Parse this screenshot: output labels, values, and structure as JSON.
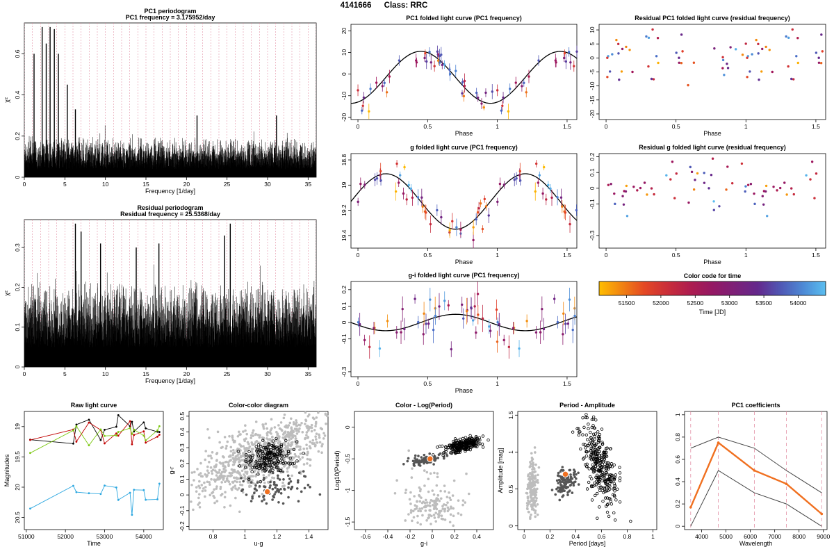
{
  "header": {
    "object_id": "4141666",
    "class_label": "Class: RRC"
  },
  "colors": {
    "grid": "#e38fa5",
    "grey": "#bdbdbd",
    "dark": "#555555",
    "orange": "#f07020"
  },
  "colorbar": {
    "title": "Color code for time",
    "xlabel": "Time [JD]",
    "ticks": [
      51500,
      52000,
      52500,
      53000,
      53500,
      54000
    ],
    "range": [
      51100,
      54400
    ]
  },
  "chart_data": [
    {
      "id": "pc1-periodogram",
      "type": "line",
      "title": "PC1 periodogram",
      "subtitle": "PC1 frequency = 3.175952/day",
      "xlabel": "Frequency [1/day]",
      "ylabel": "χ²",
      "xlim": [
        0,
        36
      ],
      "ylim": [
        0,
        0.75
      ],
      "xticks": [
        0,
        5,
        10,
        15,
        20,
        25,
        30,
        35
      ],
      "yticks": [
        0,
        0.2,
        0.4,
        0.6
      ],
      "peaks": [
        {
          "f": 2.2,
          "v": 0.73
        },
        {
          "f": 3.18,
          "v": 0.73
        },
        {
          "f": 4.2,
          "v": 0.6
        },
        {
          "f": 1.2,
          "v": 0.6
        },
        {
          "f": 5.3,
          "v": 0.45
        },
        {
          "f": 2.7,
          "v": 0.65
        },
        {
          "f": 3.7,
          "v": 0.72
        },
        {
          "f": 6.3,
          "v": 0.33
        },
        {
          "f": 21.3,
          "v": 0.3
        },
        {
          "f": 31.1,
          "v": 0.3
        }
      ]
    },
    {
      "id": "residual-periodogram",
      "type": "line",
      "title": "Residual periodogram",
      "subtitle": "Residual frequency = 25.5368/day",
      "xlabel": "Frequency [1/day]",
      "ylabel": "χ²",
      "xlim": [
        0,
        36
      ],
      "ylim": [
        0,
        0.37
      ],
      "xticks": [
        0,
        5,
        10,
        15,
        20,
        25,
        30,
        35
      ],
      "yticks": [
        0,
        0.1,
        0.2,
        0.3
      ],
      "peaks": [
        {
          "f": 6.3,
          "v": 0.36
        },
        {
          "f": 7.0,
          "v": 0.34
        },
        {
          "f": 25.4,
          "v": 0.36
        },
        {
          "f": 9.4,
          "v": 0.31
        },
        {
          "f": 16.6,
          "v": 0.31
        },
        {
          "f": 13.8,
          "v": 0.3
        },
        {
          "f": 24.7,
          "v": 0.33
        }
      ]
    },
    {
      "id": "pc1-folded",
      "type": "scatter",
      "title": "PC1 folded light curve (PC1 frequency)",
      "xlabel": "Phase",
      "xlim": [
        -0.05,
        1.57
      ],
      "ylim": [
        -21,
        23
      ],
      "xticks": [
        0,
        0.5,
        1,
        1.5
      ],
      "yticks": [
        -20,
        -10,
        0,
        10,
        20
      ],
      "invert_y": false,
      "amp": 12,
      "phase0": 0.2,
      "offset": -1.5,
      "noise": 3.0
    },
    {
      "id": "residual-pc1",
      "type": "scatter",
      "title": "Residual PC1 folded light curve (residual frequency)",
      "xlabel": "Phase",
      "xlim": [
        -0.05,
        1.57
      ],
      "ylim": [
        -22,
        12
      ],
      "xticks": [
        0,
        0.5,
        1,
        1.5
      ],
      "yticks": [
        -20,
        -15,
        -10,
        -5,
        0,
        5,
        10
      ],
      "amp": 0,
      "offset": -1,
      "noise": 5
    },
    {
      "id": "g-folded",
      "type": "scatter",
      "title": "g folded light curve (PC1 frequency)",
      "xlabel": "Phase",
      "xlim": [
        -0.05,
        1.57
      ],
      "ylim": [
        19.5,
        18.75
      ],
      "xticks": [
        0,
        0.5,
        1,
        1.5
      ],
      "yticks": [
        18.8,
        19.0,
        19.2,
        19.4
      ],
      "amp": 0.22,
      "phase0": 0.45,
      "offset": 19.13,
      "noise": 0.06
    },
    {
      "id": "residual-g",
      "type": "scatter",
      "title": "Residual g folded light curve (residual frequency)",
      "xlabel": "Phase",
      "xlim": [
        -0.05,
        1.57
      ],
      "ylim": [
        -0.38,
        0.22
      ],
      "xticks": [
        0,
        0.5,
        1,
        1.5
      ],
      "yticks": [
        -0.3,
        -0.1,
        0,
        0.1,
        0.2
      ],
      "amp": 0,
      "offset": 0,
      "noise": 0.08
    },
    {
      "id": "gi-folded",
      "type": "scatter",
      "title": "g-i folded light curve (PC1 frequency)",
      "xlabel": "Phase",
      "xlim": [
        -0.05,
        1.57
      ],
      "ylim": [
        -0.33,
        0.25
      ],
      "xticks": [
        0,
        0.5,
        1,
        1.5
      ],
      "yticks": [
        -0.3,
        -0.1,
        0,
        0.1,
        0.2
      ],
      "amp": 0.05,
      "phase0": 0.45,
      "offset": 0.0,
      "noise": 0.07
    },
    {
      "id": "raw-lc",
      "type": "line",
      "title": "Raw light curve",
      "xlabel": "Time",
      "ylabel": "Magnitudes",
      "xlim": [
        50950,
        54500
      ],
      "ylim": [
        20.7,
        18.75
      ],
      "xticks": [
        51000,
        52000,
        53000,
        54000
      ],
      "yticks": [
        19.0,
        19.5,
        20.0,
        20.5
      ],
      "epochs": [
        51100,
        52200,
        52280,
        52600,
        52900,
        53000,
        53300,
        53350,
        53650,
        53700,
        53750,
        54000,
        54050,
        54350,
        54400
      ]
    },
    {
      "id": "color-color",
      "type": "scatter",
      "title": "Color-color diagram",
      "xlabel": "u-g",
      "ylabel": "g-r",
      "xlim": [
        0.65,
        1.52
      ],
      "ylim": [
        -0.22,
        0.53
      ],
      "xticks": [
        0.8,
        1.0,
        1.2,
        1.4
      ],
      "yticks": [
        -0.2,
        -0.1,
        0,
        0.1,
        0.2,
        0.3,
        0.4,
        0.5
      ],
      "star": {
        "x": 1.14,
        "y": 0.02
      }
    },
    {
      "id": "color-logperiod",
      "type": "scatter",
      "title": "Color - Log(Period)",
      "xlabel": "g-i",
      "ylabel": "Log10(Period)",
      "xlim": [
        -0.7,
        0.55
      ],
      "ylim": [
        -1.62,
        0.25
      ],
      "xticks": [
        -0.6,
        -0.4,
        -0.2,
        0,
        0.2,
        0.4
      ],
      "yticks": [
        -1.5,
        -1.0,
        -0.5,
        0
      ],
      "star": {
        "x": -0.02,
        "y": -0.5
      }
    },
    {
      "id": "period-amplitude",
      "type": "scatter",
      "title": "Period - Amplitude",
      "xlabel": "Period [days]",
      "ylabel": "Amplitude [mag]",
      "xlim": [
        -0.05,
        1.03
      ],
      "ylim": [
        -0.05,
        1.55
      ],
      "xticks": [
        0,
        0.2,
        0.4,
        0.6,
        0.8,
        1.0
      ],
      "yticks": [
        0,
        0.5,
        1.0,
        1.5
      ],
      "star": {
        "x": 0.32,
        "y": 0.7
      }
    },
    {
      "id": "pc1-coefficients",
      "type": "line",
      "title": "PC1 coefficients",
      "xlabel": "Wavelength",
      "xlim": [
        3300,
        9150
      ],
      "ylim": [
        -0.03,
        1.03
      ],
      "xticks": [
        4000,
        5000,
        6000,
        7000,
        8000,
        9000
      ],
      "yticks": [
        0,
        0.2,
        0.4,
        0.6,
        0.8,
        1.0
      ],
      "x": [
        3551,
        4686,
        6165,
        7481,
        8931
      ],
      "series": [
        {
          "values": [
            0.17,
            0.75,
            0.5,
            0.38,
            0.11
          ]
        },
        {
          "values": [
            0.7,
            0.8,
            0.7,
            0.5,
            0.3
          ]
        },
        {
          "values": [
            0.0,
            0.5,
            0.3,
            0.2,
            0.0
          ]
        }
      ]
    }
  ]
}
